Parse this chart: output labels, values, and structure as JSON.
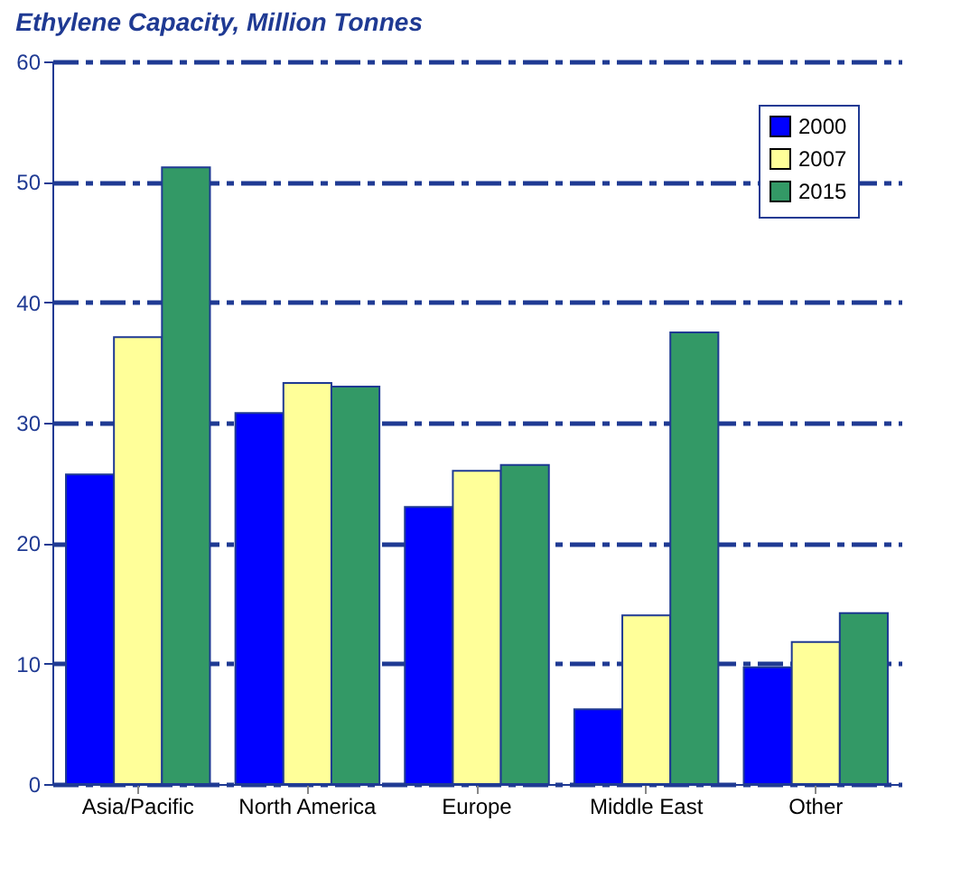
{
  "chart_data": {
    "type": "bar",
    "title": "Ethylene Capacity, Million Tonnes",
    "categories": [
      "Asia/Pacific",
      "North America",
      "Europe",
      "Middle East",
      "Other"
    ],
    "series": [
      {
        "name": "2000",
        "color": "#0000ff",
        "values": [
          25.7,
          30.8,
          23,
          6.2,
          9.7
        ]
      },
      {
        "name": "2007",
        "color": "#ffff99",
        "values": [
          37.1,
          33.3,
          26,
          14,
          11.8
        ]
      },
      {
        "name": "2015",
        "color": "#339966",
        "values": [
          51.2,
          33,
          26.5,
          37.5,
          14.2
        ]
      }
    ],
    "ylim": [
      0,
      60
    ],
    "yticks": [
      0,
      10,
      20,
      30,
      40,
      50,
      60
    ],
    "grid": "y",
    "legend": "top right"
  }
}
